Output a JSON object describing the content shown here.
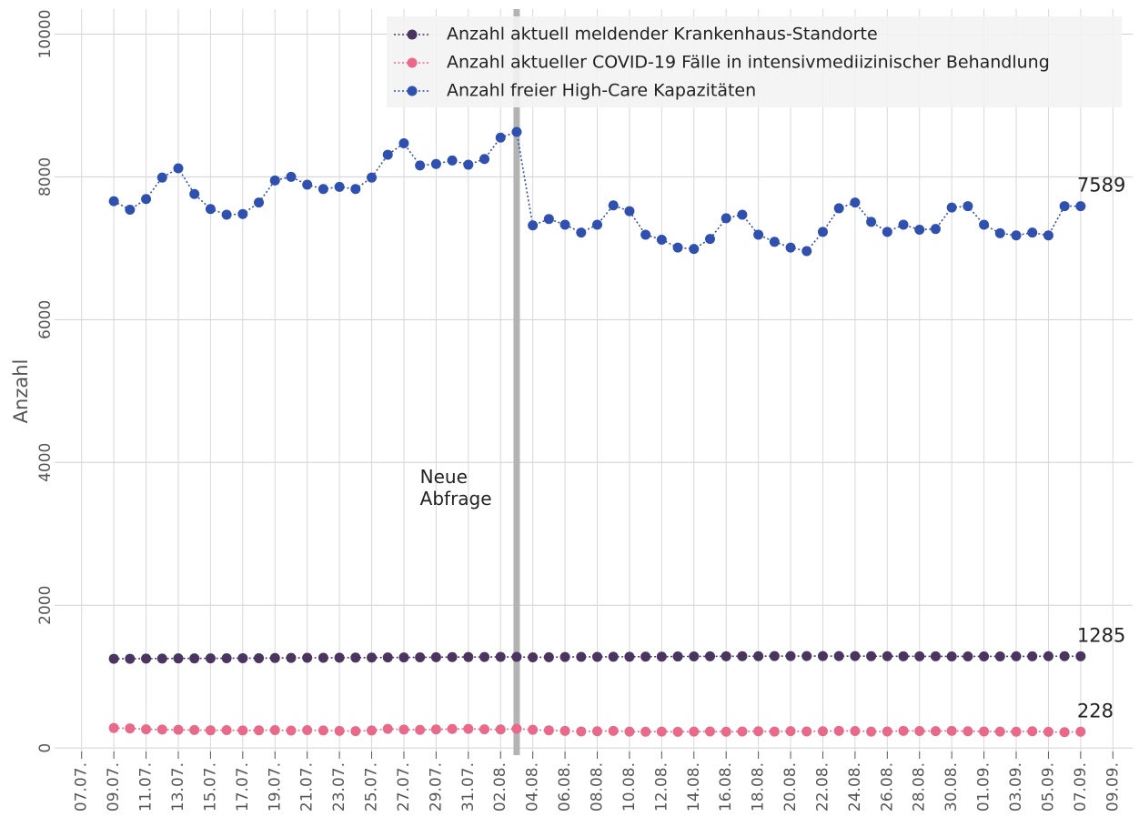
{
  "chart_data": {
    "type": "line",
    "ylabel": "Anzahl",
    "x": [
      "09.07.",
      "10.07.",
      "11.07.",
      "12.07.",
      "13.07.",
      "14.07.",
      "15.07.",
      "16.07.",
      "17.07.",
      "18.07.",
      "19.07.",
      "20.07.",
      "21.07.",
      "22.07.",
      "23.07.",
      "24.07.",
      "25.07.",
      "26.07.",
      "27.07.",
      "28.07.",
      "29.07.",
      "30.07.",
      "31.07.",
      "01.08.",
      "02.08.",
      "03.08.",
      "04.08.",
      "05.08.",
      "06.08.",
      "07.08.",
      "08.08.",
      "09.08.",
      "10.08.",
      "11.08.",
      "12.08.",
      "13.08.",
      "14.08.",
      "15.08.",
      "16.08.",
      "17.08.",
      "18.08.",
      "19.08.",
      "20.08.",
      "21.08.",
      "22.08.",
      "23.08.",
      "24.08.",
      "25.08.",
      "26.08.",
      "27.08.",
      "28.08.",
      "29.08.",
      "30.08.",
      "31.08.",
      "01.09.",
      "02.09.",
      "03.09.",
      "04.09.",
      "05.09.",
      "06.09.",
      "07.09."
    ],
    "series": [
      {
        "name": "Anzahl aktuell meldender Krankenhaus-Standorte",
        "color": "#4a3560",
        "values": [
          1250,
          1250,
          1252,
          1253,
          1255,
          1255,
          1256,
          1257,
          1258,
          1258,
          1260,
          1262,
          1263,
          1264,
          1265,
          1266,
          1267,
          1268,
          1268,
          1270,
          1272,
          1273,
          1274,
          1275,
          1276,
          1276,
          1270,
          1272,
          1275,
          1276,
          1277,
          1278,
          1278,
          1279,
          1280,
          1282,
          1283,
          1284,
          1285,
          1286,
          1286,
          1287,
          1287,
          1288,
          1288,
          1287,
          1287,
          1286,
          1286,
          1285,
          1284,
          1284,
          1283,
          1283,
          1283,
          1283,
          1284,
          1284,
          1286,
          1286,
          1285
        ]
      },
      {
        "name": "Anzahl aktueller COVID-19 Fälle in intensivmediizinischer Behandlung",
        "color": "#e8698a",
        "values": [
          280,
          275,
          262,
          258,
          255,
          252,
          248,
          250,
          246,
          248,
          250,
          244,
          250,
          246,
          240,
          236,
          245,
          268,
          258,
          254,
          260,
          266,
          268,
          262,
          260,
          270,
          255,
          248,
          240,
          232,
          235,
          240,
          230,
          228,
          230,
          226,
          230,
          232,
          228,
          232,
          234,
          230,
          236,
          232,
          235,
          240,
          238,
          230,
          232,
          240,
          238,
          236,
          240,
          234,
          232,
          230,
          228,
          234,
          226,
          222,
          228
        ]
      },
      {
        "name": "Anzahl freier High-Care Kapazitäten",
        "color": "#3050b0",
        "values": [
          7660,
          7540,
          7690,
          7990,
          8120,
          7760,
          7550,
          7470,
          7480,
          7640,
          7950,
          8000,
          7890,
          7830,
          7860,
          7830,
          7990,
          8310,
          8470,
          8160,
          8180,
          8230,
          8170,
          8250,
          8550,
          8630,
          7320,
          7410,
          7330,
          7220,
          7330,
          7600,
          7520,
          7190,
          7120,
          7010,
          6990,
          7130,
          7420,
          7470,
          7190,
          7090,
          7010,
          6960,
          7230,
          7560,
          7640,
          7370,
          7230,
          7330,
          7260,
          7270,
          7570,
          7590,
          7330,
          7210,
          7180,
          7220,
          7180,
          7590,
          7589
        ]
      }
    ],
    "xlim": [
      "06.07.",
      "10.09."
    ],
    "xticks": [
      "07.07.",
      "09.07.",
      "11.07.",
      "13.07.",
      "15.07.",
      "17.07.",
      "19.07.",
      "21.07.",
      "23.07.",
      "25.07.",
      "27.07.",
      "29.07.",
      "31.07.",
      "02.08.",
      "04.08.",
      "06.08.",
      "08.08.",
      "10.08.",
      "12.08.",
      "14.08.",
      "16.08.",
      "18.08.",
      "20.08.",
      "22.08.",
      "24.08.",
      "26.08.",
      "28.08.",
      "30.08.",
      "01.09.",
      "03.09.",
      "05.09.",
      "07.09.",
      "09.09."
    ],
    "ylim": [
      -100,
      10350
    ],
    "yticks": [
      0,
      2000,
      4000,
      6000,
      8000,
      10000
    ],
    "grid": true,
    "legend": "upper right",
    "vline": {
      "x": "03.08.",
      "color": "#b3b3b3"
    },
    "annotation": {
      "text": "Neue\nAbfrage",
      "x": "28.07.",
      "y": 4400
    }
  }
}
